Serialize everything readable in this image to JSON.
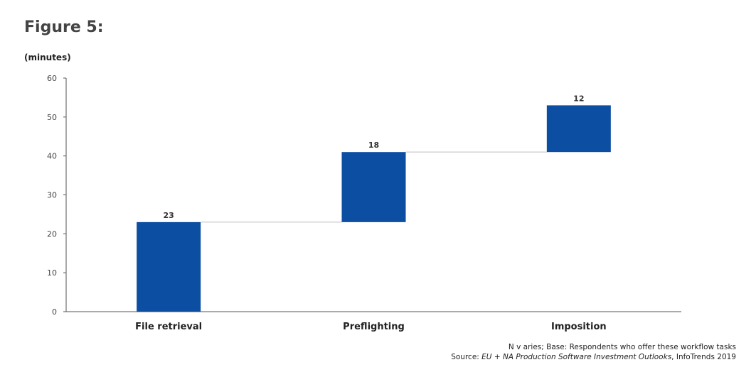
{
  "figure_title": "Figure 5:",
  "unit_label": "(minutes)",
  "footnote": {
    "line1": "N v aries; Base: Respondents who offer these workflow tasks",
    "source_prefix": "Source: ",
    "source_title": "EU + NA Production Software Investment Outlooks",
    "source_suffix": ", InfoTrends 2019"
  },
  "colors": {
    "bar": "#0b4ea2",
    "connector": "#bfbfbf",
    "axis": "#555555"
  },
  "chart_data": {
    "type": "bar",
    "subtype": "waterfall",
    "categories": [
      "File retrieval",
      "Preflighting",
      "Imposition"
    ],
    "values": [
      23,
      18,
      12
    ],
    "bases": [
      0,
      23,
      41
    ],
    "ytick_labels": [
      "0",
      "10",
      "20",
      "30",
      "40",
      "50",
      "60"
    ],
    "yticks": [
      0,
      10,
      20,
      30,
      40,
      50,
      60
    ],
    "ylim": [
      0,
      60
    ],
    "grid": false,
    "legend": "none"
  }
}
